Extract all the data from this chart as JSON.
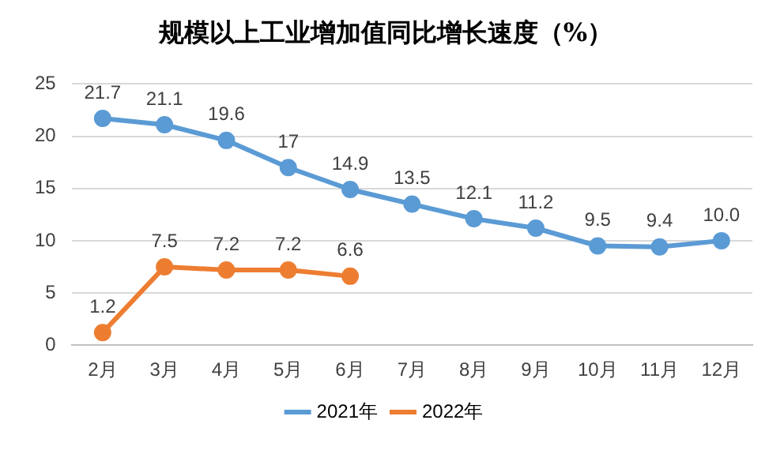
{
  "chart_data": {
    "type": "line",
    "title": "规模以上工业增加值同比增长速度（%）",
    "categories": [
      "2月",
      "3月",
      "4月",
      "5月",
      "6月",
      "7月",
      "8月",
      "9月",
      "10月",
      "11月",
      "12月"
    ],
    "series": [
      {
        "name": "2021年",
        "color": "#5b9bd5",
        "values": [
          21.7,
          21.1,
          19.6,
          17,
          14.9,
          13.5,
          12.1,
          11.2,
          9.5,
          9.4,
          10.0
        ],
        "value_labels": [
          "21.7",
          "21.1",
          "19.6",
          "17",
          "14.9",
          "13.5",
          "12.1",
          "11.2",
          "9.5",
          "9.4",
          "10.0"
        ]
      },
      {
        "name": "2022年",
        "color": "#ed7d31",
        "values": [
          1.2,
          7.5,
          7.2,
          7.2,
          6.6,
          null,
          null,
          null,
          null,
          null,
          null
        ],
        "value_labels": [
          "1.2",
          "7.5",
          "7.2",
          "7.2",
          "6.6",
          null,
          null,
          null,
          null,
          null,
          null
        ]
      }
    ],
    "ylim": [
      0,
      25
    ],
    "yticks": [
      0,
      5,
      10,
      15,
      20,
      25
    ],
    "grid": "y",
    "legend": "bottom",
    "marker": "circle",
    "line_style": "solid"
  }
}
